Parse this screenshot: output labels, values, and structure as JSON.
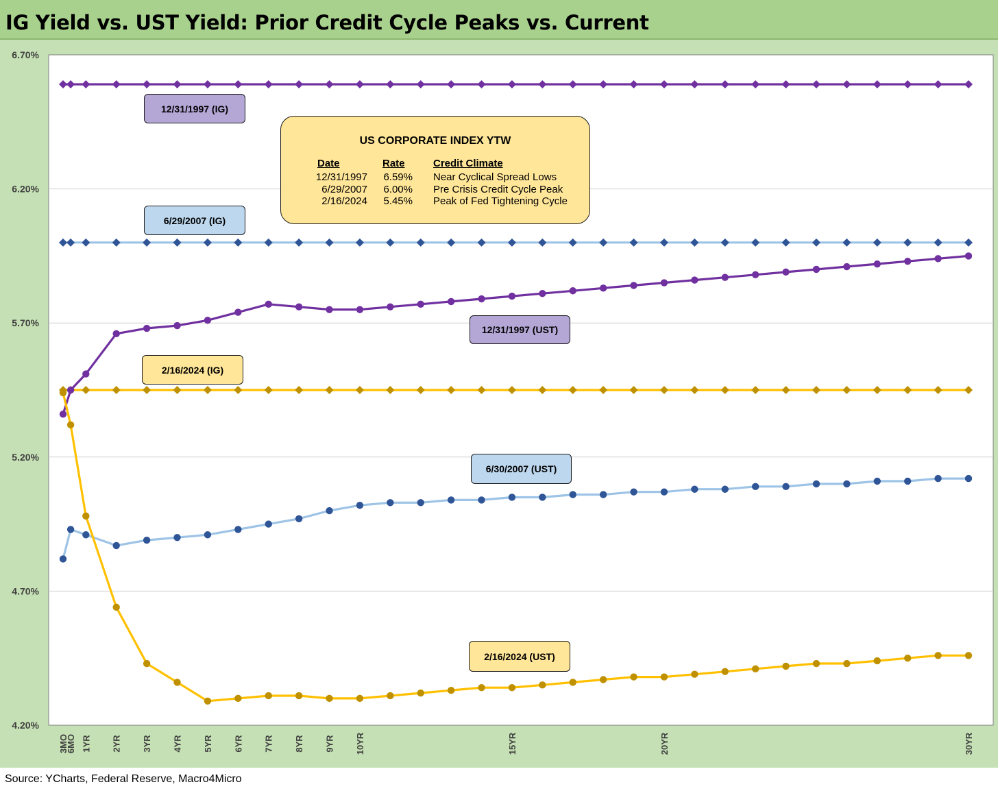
{
  "title": "IG Yield vs. UST Yield: Prior Credit Cycle Peaks vs. Current",
  "source": "Source: YCharts, Federal Reserve, Macro4Micro",
  "colors": {
    "header_bg": "#a9d18e",
    "plot_bg": "#c5e0b4",
    "purple": "#7030a0",
    "purple_box": "#b4a7d6",
    "light_blue": "#9dc3e6",
    "dark_blue": "#2f5597",
    "blue_box": "#bdd7ee",
    "gold_line": "#ffc000",
    "gold_marker": "#bf9000",
    "gold_box": "#ffe699"
  },
  "chart_data": {
    "type": "line",
    "xlabel": "",
    "ylabel": "",
    "ylim": [
      4.2,
      6.7
    ],
    "ytick_values": [
      4.2,
      4.7,
      5.2,
      5.7,
      6.2,
      6.7
    ],
    "ytick_labels": [
      "4.20%",
      "4.70%",
      "5.20%",
      "5.70%",
      "6.20%",
      "6.70%"
    ],
    "x_years": [
      0.25,
      0.5,
      1,
      2,
      3,
      4,
      5,
      6,
      7,
      8,
      9,
      10,
      11,
      12,
      13,
      14,
      15,
      16,
      17,
      18,
      19,
      20,
      21,
      22,
      23,
      24,
      25,
      26,
      27,
      28,
      29,
      30
    ],
    "x_tick_labels": [
      "3MO",
      "6MO",
      "1YR",
      "2YR",
      "3YR",
      "4YR",
      "5YR",
      "6YR",
      "7YR",
      "8YR",
      "9YR",
      "10YR",
      "",
      "",
      "",
      "",
      "15YR",
      "",
      "",
      "",
      "",
      "20YR",
      "",
      "",
      "",
      "",
      "",
      "",
      "",
      "",
      "",
      "30YR"
    ],
    "grid": "horizontal",
    "series": [
      {
        "label": "12/31/1997 (IG)",
        "kind": "ig",
        "color": "#7030a0",
        "marker_color": "#7030a0",
        "marker": "diamond",
        "box_color": "#b4a7d6",
        "values": [
          6.59,
          6.59,
          6.59,
          6.59,
          6.59,
          6.59,
          6.59,
          6.59,
          6.59,
          6.59,
          6.59,
          6.59,
          6.59,
          6.59,
          6.59,
          6.59,
          6.59,
          6.59,
          6.59,
          6.59,
          6.59,
          6.59,
          6.59,
          6.59,
          6.59,
          6.59,
          6.59,
          6.59,
          6.59,
          6.59,
          6.59,
          6.59
        ]
      },
      {
        "label": "6/29/2007 (IG)",
        "kind": "ig",
        "color": "#9dc3e6",
        "marker_color": "#2f5597",
        "marker": "diamond",
        "box_color": "#bdd7ee",
        "values": [
          6.0,
          6.0,
          6.0,
          6.0,
          6.0,
          6.0,
          6.0,
          6.0,
          6.0,
          6.0,
          6.0,
          6.0,
          6.0,
          6.0,
          6.0,
          6.0,
          6.0,
          6.0,
          6.0,
          6.0,
          6.0,
          6.0,
          6.0,
          6.0,
          6.0,
          6.0,
          6.0,
          6.0,
          6.0,
          6.0,
          6.0,
          6.0
        ]
      },
      {
        "label": "2/16/2024 (IG)",
        "kind": "ig",
        "color": "#ffc000",
        "marker_color": "#bf9000",
        "marker": "diamond",
        "box_color": "#ffe699",
        "values": [
          5.45,
          5.45,
          5.45,
          5.45,
          5.45,
          5.45,
          5.45,
          5.45,
          5.45,
          5.45,
          5.45,
          5.45,
          5.45,
          5.45,
          5.45,
          5.45,
          5.45,
          5.45,
          5.45,
          5.45,
          5.45,
          5.45,
          5.45,
          5.45,
          5.45,
          5.45,
          5.45,
          5.45,
          5.45,
          5.45,
          5.45,
          5.45
        ]
      },
      {
        "label": "12/31/1997 (UST)",
        "kind": "ust",
        "color": "#7030a0",
        "marker_color": "#7030a0",
        "marker": "circle",
        "box_color": "#b4a7d6",
        "values": [
          5.36,
          5.45,
          5.51,
          5.66,
          5.68,
          5.69,
          5.71,
          5.74,
          5.77,
          5.76,
          5.75,
          5.75,
          5.76,
          5.77,
          5.78,
          5.79,
          5.8,
          5.81,
          5.82,
          5.83,
          5.84,
          5.85,
          5.86,
          5.87,
          5.88,
          5.89,
          5.9,
          5.91,
          5.92,
          5.93,
          5.94,
          5.95
        ]
      },
      {
        "label": "6/30/2007 (UST)",
        "kind": "ust",
        "color": "#9dc3e6",
        "marker_color": "#2f5597",
        "marker": "circle",
        "box_color": "#bdd7ee",
        "values": [
          4.82,
          4.93,
          4.91,
          4.87,
          4.89,
          4.9,
          4.91,
          4.93,
          4.95,
          4.97,
          5.0,
          5.02,
          5.03,
          5.03,
          5.04,
          5.04,
          5.05,
          5.05,
          5.06,
          5.06,
          5.07,
          5.07,
          5.08,
          5.08,
          5.09,
          5.09,
          5.1,
          5.1,
          5.11,
          5.11,
          5.12,
          5.12
        ]
      },
      {
        "label": "2/16/2024 (UST)",
        "kind": "ust",
        "color": "#ffc000",
        "marker_color": "#bf9000",
        "marker": "circle",
        "box_color": "#ffe699",
        "values": [
          5.44,
          5.32,
          4.98,
          4.64,
          4.43,
          4.36,
          4.29,
          4.3,
          4.31,
          4.31,
          4.3,
          4.3,
          4.31,
          4.32,
          4.33,
          4.34,
          4.34,
          4.35,
          4.36,
          4.37,
          4.38,
          4.38,
          4.39,
          4.4,
          4.41,
          4.42,
          4.43,
          4.43,
          4.44,
          4.45,
          4.46,
          4.46
        ]
      }
    ],
    "annotation_table": {
      "title": "US CORPORATE INDEX YTW",
      "headers": [
        "Date",
        "Rate",
        "Credit Climate"
      ],
      "rows": [
        [
          "12/31/1997",
          "6.59%",
          "Near Cyclical Spread Lows"
        ],
        [
          "6/29/2007",
          "6.00%",
          "Pre Crisis Credit Cycle Peak"
        ],
        [
          "2/16/2024",
          "5.45%",
          "Peak of Fed Tightening Cycle"
        ]
      ]
    }
  }
}
